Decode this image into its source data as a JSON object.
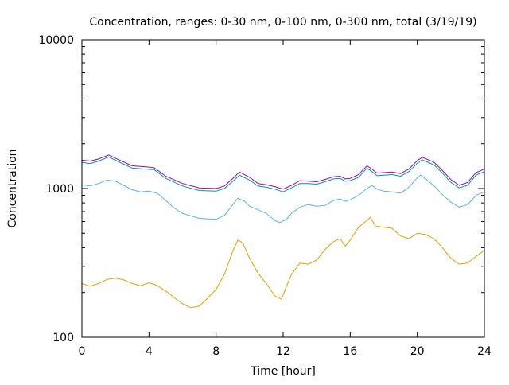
{
  "chart_data": {
    "type": "line",
    "title": "Concentration, ranges: 0-30 nm, 0-100 nm, 0-300 nm, total (3/19/19)",
    "xlabel": "Time [hour]",
    "ylabel": "Concentration",
    "xlim": [
      0,
      24
    ],
    "ylim": [
      100,
      10000
    ],
    "yscale": "log",
    "grid": false,
    "legend": "none",
    "x_ticks": [
      0,
      4,
      8,
      12,
      16,
      20,
      24
    ],
    "y_ticks": [
      100,
      1000,
      10000
    ],
    "series": [
      {
        "color": "#9400d3",
        "points": [
          [
            0,
            1550
          ],
          [
            0.5,
            1530
          ],
          [
            1,
            1580
          ],
          [
            1.6,
            1680
          ],
          [
            2.2,
            1560
          ],
          [
            3,
            1420
          ],
          [
            3.8,
            1400
          ],
          [
            4.3,
            1380
          ],
          [
            5,
            1210
          ],
          [
            6,
            1080
          ],
          [
            7,
            1010
          ],
          [
            8,
            1000
          ],
          [
            8.5,
            1040
          ],
          [
            9,
            1170
          ],
          [
            9.4,
            1290
          ],
          [
            10,
            1190
          ],
          [
            10.5,
            1080
          ],
          [
            11,
            1060
          ],
          [
            11.5,
            1030
          ],
          [
            12,
            990
          ],
          [
            12.5,
            1050
          ],
          [
            13,
            1130
          ],
          [
            13.5,
            1120
          ],
          [
            14,
            1110
          ],
          [
            14.5,
            1150
          ],
          [
            15,
            1200
          ],
          [
            15.4,
            1210
          ],
          [
            15.7,
            1160
          ],
          [
            16,
            1170
          ],
          [
            16.5,
            1240
          ],
          [
            17,
            1420
          ],
          [
            17.3,
            1350
          ],
          [
            17.6,
            1270
          ],
          [
            18,
            1280
          ],
          [
            18.5,
            1290
          ],
          [
            19,
            1260
          ],
          [
            19.5,
            1350
          ],
          [
            20,
            1540
          ],
          [
            20.3,
            1620
          ],
          [
            21,
            1500
          ],
          [
            21.5,
            1320
          ],
          [
            22,
            1150
          ],
          [
            22.5,
            1050
          ],
          [
            23,
            1100
          ],
          [
            23.5,
            1280
          ],
          [
            24,
            1350
          ]
        ]
      },
      {
        "color": "#009e73",
        "points": [
          [
            0,
            1500
          ],
          [
            0.5,
            1470
          ],
          [
            1,
            1530
          ],
          [
            1.6,
            1630
          ],
          [
            2.2,
            1510
          ],
          [
            3,
            1370
          ],
          [
            3.8,
            1350
          ],
          [
            4.3,
            1340
          ],
          [
            5,
            1170
          ],
          [
            6,
            1040
          ],
          [
            7,
            970
          ],
          [
            8,
            960
          ],
          [
            8.5,
            1000
          ],
          [
            9,
            1120
          ],
          [
            9.4,
            1230
          ],
          [
            10,
            1140
          ],
          [
            10.5,
            1040
          ],
          [
            11,
            1020
          ],
          [
            11.5,
            990
          ],
          [
            12,
            950
          ],
          [
            12.5,
            1010
          ],
          [
            13,
            1080
          ],
          [
            13.5,
            1080
          ],
          [
            14,
            1070
          ],
          [
            14.5,
            1110
          ],
          [
            15,
            1160
          ],
          [
            15.4,
            1170
          ],
          [
            15.7,
            1120
          ],
          [
            16,
            1130
          ],
          [
            16.5,
            1190
          ],
          [
            17,
            1370
          ],
          [
            17.3,
            1300
          ],
          [
            17.6,
            1220
          ],
          [
            18,
            1230
          ],
          [
            18.5,
            1240
          ],
          [
            19,
            1210
          ],
          [
            19.5,
            1300
          ],
          [
            20,
            1480
          ],
          [
            20.3,
            1560
          ],
          [
            21,
            1440
          ],
          [
            21.5,
            1270
          ],
          [
            22,
            1100
          ],
          [
            22.5,
            1010
          ],
          [
            23,
            1050
          ],
          [
            23.5,
            1230
          ],
          [
            24,
            1300
          ]
        ]
      },
      {
        "color": "#56b4e9",
        "points": [
          [
            0,
            1060
          ],
          [
            0.5,
            1040
          ],
          [
            1,
            1080
          ],
          [
            1.5,
            1140
          ],
          [
            2,
            1120
          ],
          [
            2.5,
            1050
          ],
          [
            3,
            980
          ],
          [
            3.5,
            950
          ],
          [
            4,
            960
          ],
          [
            4.5,
            930
          ],
          [
            5,
            830
          ],
          [
            5.5,
            740
          ],
          [
            6,
            680
          ],
          [
            7,
            630
          ],
          [
            8,
            620
          ],
          [
            8.5,
            660
          ],
          [
            9,
            780
          ],
          [
            9.3,
            860
          ],
          [
            9.7,
            820
          ],
          [
            10,
            760
          ],
          [
            10.5,
            720
          ],
          [
            11,
            680
          ],
          [
            11.5,
            610
          ],
          [
            11.8,
            590
          ],
          [
            12.2,
            620
          ],
          [
            12.5,
            680
          ],
          [
            13,
            750
          ],
          [
            13.5,
            780
          ],
          [
            14,
            760
          ],
          [
            14.5,
            770
          ],
          [
            15,
            830
          ],
          [
            15.4,
            850
          ],
          [
            15.7,
            820
          ],
          [
            16,
            840
          ],
          [
            16.5,
            900
          ],
          [
            17,
            1000
          ],
          [
            17.3,
            1050
          ],
          [
            17.6,
            990
          ],
          [
            18,
            960
          ],
          [
            18.5,
            950
          ],
          [
            19,
            930
          ],
          [
            19.5,
            1020
          ],
          [
            20,
            1180
          ],
          [
            20.2,
            1230
          ],
          [
            20.5,
            1160
          ],
          [
            21,
            1040
          ],
          [
            21.5,
            910
          ],
          [
            22,
            810
          ],
          [
            22.5,
            750
          ],
          [
            23,
            780
          ],
          [
            23.5,
            900
          ],
          [
            24,
            950
          ]
        ]
      },
      {
        "color": "#e69f00",
        "points": [
          [
            0,
            230
          ],
          [
            0.5,
            220
          ],
          [
            1,
            230
          ],
          [
            1.5,
            245
          ],
          [
            2,
            250
          ],
          [
            2.5,
            243
          ],
          [
            3,
            230
          ],
          [
            3.5,
            222
          ],
          [
            4,
            232
          ],
          [
            4.4,
            225
          ],
          [
            5,
            205
          ],
          [
            5.5,
            185
          ],
          [
            6,
            168
          ],
          [
            6.5,
            158
          ],
          [
            7,
            162
          ],
          [
            7.5,
            183
          ],
          [
            8,
            210
          ],
          [
            8.5,
            265
          ],
          [
            9,
            380
          ],
          [
            9.3,
            450
          ],
          [
            9.6,
            430
          ],
          [
            10,
            340
          ],
          [
            10.5,
            270
          ],
          [
            11,
            230
          ],
          [
            11.5,
            190
          ],
          [
            11.9,
            180
          ],
          [
            12.2,
            220
          ],
          [
            12.5,
            265
          ],
          [
            13,
            315
          ],
          [
            13.5,
            310
          ],
          [
            14,
            330
          ],
          [
            14.5,
            390
          ],
          [
            15,
            440
          ],
          [
            15.4,
            460
          ],
          [
            15.7,
            410
          ],
          [
            16,
            450
          ],
          [
            16.5,
            550
          ],
          [
            17,
            610
          ],
          [
            17.2,
            640
          ],
          [
            17.5,
            560
          ],
          [
            18,
            550
          ],
          [
            18.5,
            540
          ],
          [
            19,
            480
          ],
          [
            19.5,
            460
          ],
          [
            20,
            500
          ],
          [
            20.5,
            490
          ],
          [
            21,
            460
          ],
          [
            21.5,
            400
          ],
          [
            22,
            340
          ],
          [
            22.5,
            310
          ],
          [
            23,
            315
          ],
          [
            23.5,
            350
          ],
          [
            24,
            385
          ]
        ]
      }
    ]
  }
}
